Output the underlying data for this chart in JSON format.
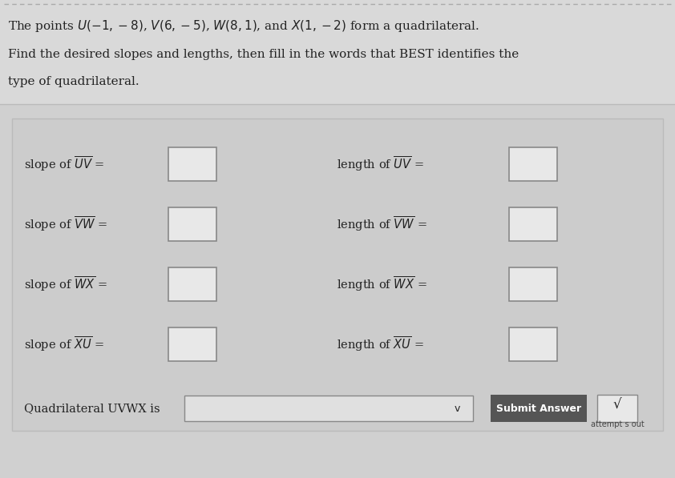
{
  "bg_top": "#d9d9d9",
  "bg_bottom": "#c8c8c8",
  "bg_panel": "#d0d0d0",
  "title_line1": "The points $U(-1, -8)$, $V(6, -5)$, $W(8, 1)$, and $X(1, -2)$ form a quadrilateral.",
  "title_line2": "Find the desired slopes and lengths, then fill in the words that BEST identifies the",
  "title_line3": "type of quadrilateral.",
  "slope_labels": [
    "slope of $\\overline{UV}$ =",
    "slope of $\\overline{VW}$ =",
    "slope of $\\overline{WX}$ =",
    "slope of $\\overline{XU}$ ="
  ],
  "length_labels": [
    "length of $\\overline{UV}$ =",
    "length of $\\overline{VW}$ =",
    "length of $\\overline{WX}$ =",
    "length of $\\overline{XU}$ ="
  ],
  "bottom_label": "Quadrilateral UVWX is",
  "submit_label": "Submit Answer",
  "attempt_label": "attempt s out",
  "checkmark": "√",
  "text_color": "#222222",
  "box_fill": "#e8e8e8",
  "box_edge": "#888888",
  "submit_bg": "#555555",
  "submit_text": "#ffffff",
  "dashed_border": "#aaaaaa",
  "font_size_title": 11,
  "font_size_label": 10.5,
  "font_size_small": 8
}
